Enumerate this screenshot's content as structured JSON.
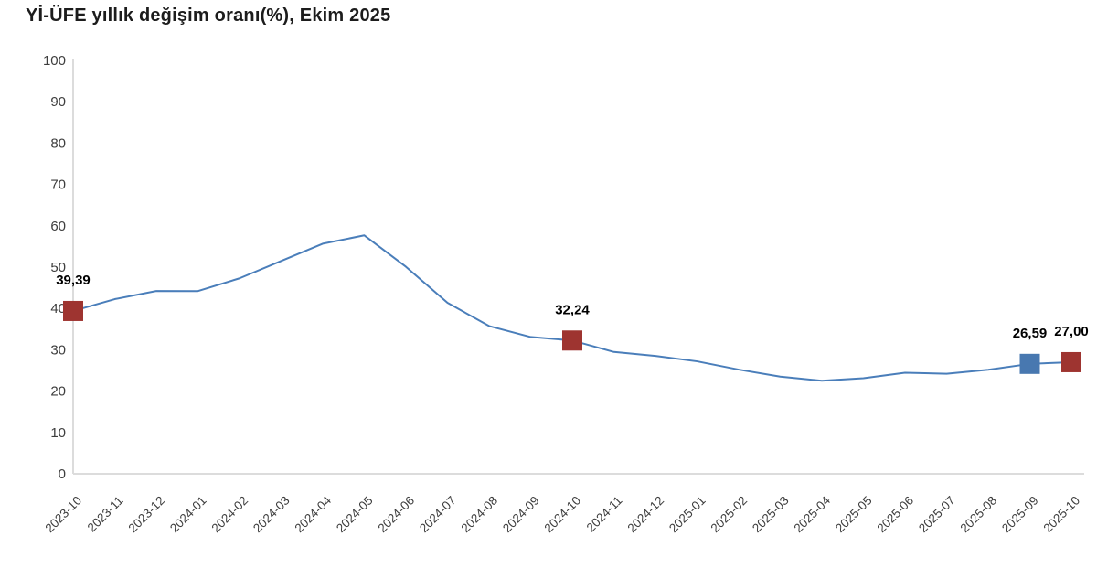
{
  "page": {
    "title": "Yİ-ÜFE yıllık değişim oranı(%), Ekim 2025"
  },
  "chart_data": {
    "type": "line",
    "title": "Yİ-ÜFE yıllık değişim oranı(%), Ekim 2025",
    "x": [
      "2023-10",
      "2023-11",
      "2023-12",
      "2024-01",
      "2024-02",
      "2024-03",
      "2024-04",
      "2024-05",
      "2024-06",
      "2024-07",
      "2024-08",
      "2024-09",
      "2024-10",
      "2024-11",
      "2024-12",
      "2025-01",
      "2025-02",
      "2025-03",
      "2025-04",
      "2025-05",
      "2025-06",
      "2025-07",
      "2025-08",
      "2025-09",
      "2025-10"
    ],
    "series": [
      {
        "name": "Yİ-ÜFE yıllık değişim oranı (%)",
        "values": [
          39.39,
          42.25,
          44.22,
          44.2,
          47.29,
          51.47,
          55.66,
          57.68,
          50.09,
          41.37,
          35.75,
          33.09,
          32.24,
          29.47,
          28.52,
          27.2,
          25.21,
          23.5,
          22.5,
          23.13,
          24.45,
          24.19,
          25.16,
          26.59,
          27.0
        ]
      }
    ],
    "ylim": [
      0,
      100
    ],
    "yticks": [
      0,
      10,
      20,
      30,
      40,
      50,
      60,
      70,
      80,
      90,
      100
    ],
    "grid": false,
    "legend_position": "none",
    "x_label_rotation_deg": -45,
    "highlighted_points": [
      {
        "x": "2023-10",
        "value": 39.39,
        "label": "39,39",
        "marker_color": "#9e3430"
      },
      {
        "x": "2024-10",
        "value": 32.24,
        "label": "32,24",
        "marker_color": "#9e3430"
      },
      {
        "x": "2025-09",
        "value": 26.59,
        "label": "26,59",
        "marker_color": "#4878b0"
      },
      {
        "x": "2025-10",
        "value": 27.0,
        "label": "27,00",
        "marker_color": "#9e3430"
      }
    ]
  },
  "colors": {
    "line": "#4a7eba",
    "marker_red": "#9e3430",
    "marker_blue": "#4878b0",
    "axis_line": "#dcdcdc",
    "tick_text": "#3d3d3d",
    "title_text": "#1c1c1c",
    "value_label_text": "#000000"
  }
}
